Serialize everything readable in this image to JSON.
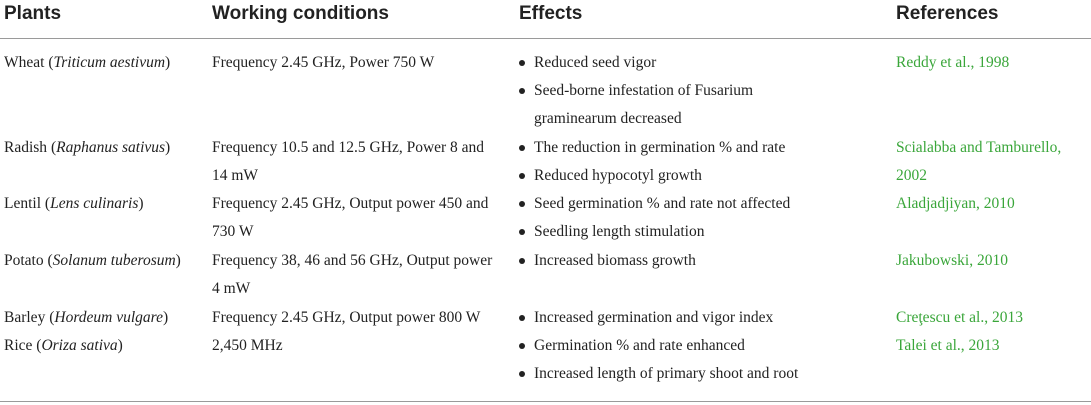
{
  "headers": [
    "Plants",
    "Working conditions",
    "Effects",
    "References"
  ],
  "rows": [
    {
      "plant": "Wheat",
      "species": "Triticum aestivum",
      "conditions": "Frequency 2.45 GHz, Power 750 W",
      "effects": [
        "Reduced seed vigor",
        "Seed-borne infestation of Fusarium graminearum decreased"
      ],
      "reference": "Reddy et al., 1998"
    },
    {
      "plant": "Radish",
      "species": "Raphanus sativus",
      "conditions": "Frequency 10.5 and 12.5 GHz, Power 8 and 14 mW",
      "effects": [
        "The reduction in germination % and rate",
        "Reduced hypocotyl growth"
      ],
      "reference": "Scialabba and Tamburello, 2002"
    },
    {
      "plant": "Lentil",
      "species": "Lens culinaris",
      "conditions": "Frequency 2.45 GHz, Output power 450 and 730 W",
      "effects": [
        "Seed germination % and rate not affected",
        "Seedling length stimulation"
      ],
      "reference": "Aladjadjiyan, 2010"
    },
    {
      "plant": "Potato",
      "species": "Solanum tuberosum",
      "conditions": "Frequency 38, 46 and 56 GHz, Output power 4 mW",
      "effects": [
        "Increased biomass growth"
      ],
      "reference": "Jakubowski, 2010"
    },
    {
      "plant": "Barley",
      "species": "Hordeum vulgare",
      "conditions": "Frequency 2.45 GHz, Output power 800 W",
      "effects": [
        "Increased germination and vigor index"
      ],
      "reference": "Creţescu et al., 2013"
    },
    {
      "plant": "Rice",
      "species": "Oriza sativa",
      "conditions": "2,450 MHz",
      "effects": [
        "Germination % and rate enhanced",
        "Increased length of primary shoot and root"
      ],
      "reference": "Talei et al., 2013"
    }
  ]
}
